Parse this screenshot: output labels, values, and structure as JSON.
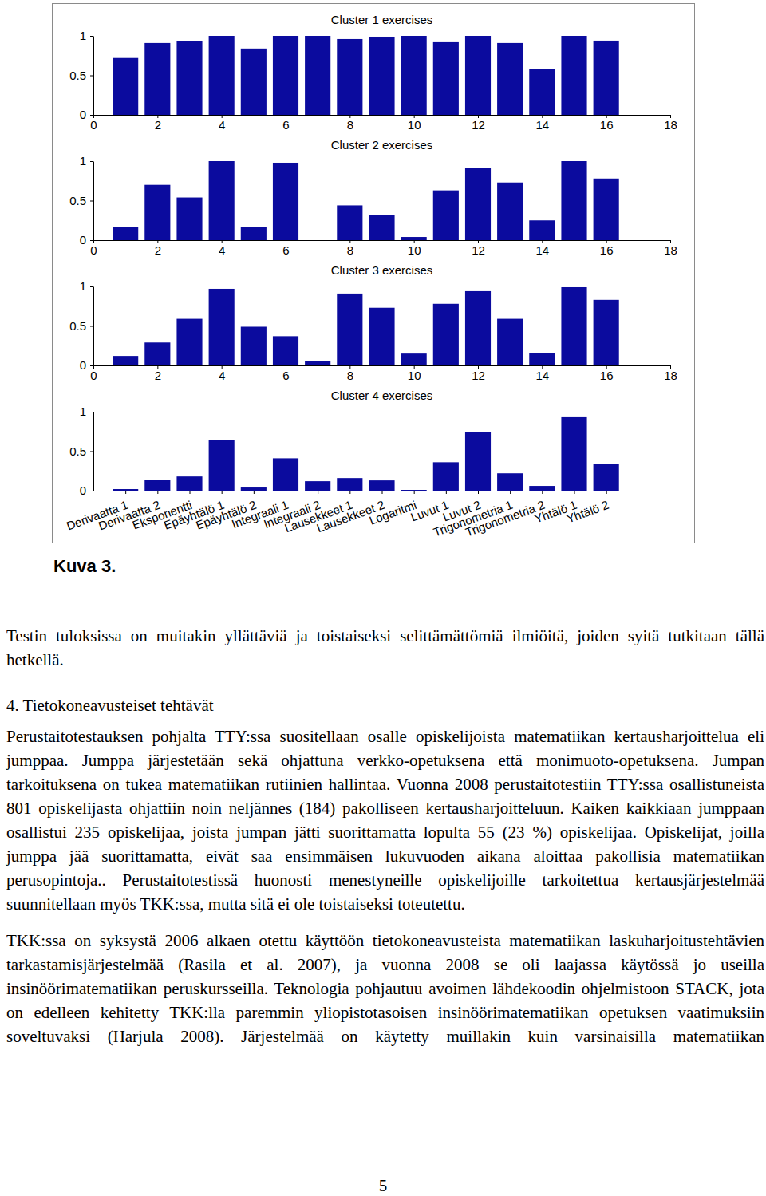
{
  "chart_data": [
    {
      "type": "bar",
      "title": "Cluster 1 exercises",
      "x": [
        1,
        2,
        3,
        4,
        5,
        6,
        7,
        8,
        9,
        10,
        11,
        12,
        13,
        14,
        15,
        16
      ],
      "values": [
        0.72,
        0.91,
        0.93,
        1.0,
        0.84,
        1.0,
        1.0,
        0.96,
        0.99,
        1.0,
        0.92,
        1.0,
        0.91,
        0.58,
        1.0,
        0.94
      ],
      "color": "#0b0b9e",
      "xlim": [
        0,
        18
      ],
      "xticks": [
        0,
        2,
        4,
        6,
        8,
        10,
        12,
        14,
        16,
        18
      ],
      "ylim": [
        0,
        1
      ],
      "yticks": [
        0,
        0.5,
        1
      ]
    },
    {
      "type": "bar",
      "title": "Cluster 2 exercises",
      "x": [
        1,
        2,
        3,
        4,
        5,
        6,
        7,
        8,
        9,
        10,
        11,
        12,
        13,
        14,
        15,
        16
      ],
      "values": [
        0.17,
        0.7,
        0.54,
        1.0,
        0.17,
        0.98,
        0,
        0.44,
        0.32,
        0.04,
        0.63,
        0.91,
        0.73,
        0.25,
        1.0,
        0.78
      ],
      "color": "#0b0b9e",
      "xlim": [
        0,
        18
      ],
      "xticks": [
        0,
        2,
        4,
        6,
        8,
        10,
        12,
        14,
        16,
        18
      ],
      "ylim": [
        0,
        1
      ],
      "yticks": [
        0,
        0.5,
        1
      ]
    },
    {
      "type": "bar",
      "title": "Cluster 3 exercises",
      "x": [
        1,
        2,
        3,
        4,
        5,
        6,
        7,
        8,
        9,
        10,
        11,
        12,
        13,
        14,
        15,
        16
      ],
      "values": [
        0.12,
        0.29,
        0.59,
        0.97,
        0.49,
        0.37,
        0.06,
        0.91,
        0.73,
        0.15,
        0.78,
        0.94,
        0.59,
        0.16,
        0.99,
        0.83
      ],
      "color": "#0b0b9e",
      "xlim": [
        0,
        18
      ],
      "xticks": [
        0,
        2,
        4,
        6,
        8,
        10,
        12,
        14,
        16,
        18
      ],
      "ylim": [
        0,
        1
      ],
      "yticks": [
        0,
        0.5,
        1
      ]
    },
    {
      "type": "bar",
      "title": "Cluster 4 exercises",
      "x": [
        1,
        2,
        3,
        4,
        5,
        6,
        7,
        8,
        9,
        10,
        11,
        12,
        13,
        14,
        15,
        16
      ],
      "categories": [
        "Derivaatta 1",
        "Derivaatta 2",
        "Eksponentti",
        "Epäyhtälö 1",
        "Epäyhtälö 2",
        "Integraali 1",
        "Integraali 2",
        "Lausekkeet 1",
        "Lausekkeet 2",
        "Logaritmi",
        "Luvut 1",
        "Luvut 2",
        "Trigonometria 1",
        "Trigonometria 2",
        "Yhtälö 1",
        "Yhtälö 2"
      ],
      "values": [
        0.02,
        0.14,
        0.18,
        0.64,
        0.04,
        0.41,
        0.12,
        0.16,
        0.13,
        0.01,
        0.36,
        0.74,
        0.22,
        0.06,
        0.93,
        0.34
      ],
      "color": "#0b0b9e",
      "xlim": [
        0,
        18
      ],
      "ylim": [
        0,
        1
      ],
      "yticks": [
        0,
        0.5,
        1
      ]
    }
  ],
  "document": {
    "caption": "Kuva 3.",
    "intro": "Testin tuloksissa on muitakin yllättäviä ja toistaiseksi selittämättömiä ilmiöitä, joiden syitä tutkitaan tällä hetkellä.",
    "section_title": "4. Tietokoneavusteiset tehtävät",
    "section_paragraphs": [
      "Perustaitotestauksen pohjalta TTY:ssa suositellaan osalle opiskelijoista matematiikan kertausharjoittelua eli jumppaa. Jumppa järjestetään sekä ohjattuna verkko-opetuksena että monimuoto-opetuksena. Jumpan tarkoituksena on tukea matematiikan rutiinien hallintaa. Vuonna 2008 perustaitotestiin TTY:ssa osallistuneista 801 opiskelijasta ohjattiin noin neljännes (184) pakolliseen kertausharjoitteluun. Kaiken kaikkiaan jumppaan osallistui 235 opiskelijaa, joista jumpan jätti suorittamatta lopulta 55 (23 %) opiskelijaa. Opiskelijat, joilla jumppa jää suorittamatta, eivät saa ensimmäisen lukuvuoden aikana aloittaa pakollisia matematiikan perusopintoja.. Perustaitotestissä huonosti menestyneille opiskelijoille tarkoitettua kertausjärjestelmää suunnitellaan myös TKK:ssa, mutta sitä ei ole toistaiseksi toteutettu.",
      "TKK:ssa on syksystä 2006 alkaen otettu käyttöön tietokoneavusteista matematiikan laskuharjoitustehtävien tarkastamisjärjestelmää (Rasila et al. 2007), ja vuonna 2008 se oli laajassa käytössä jo useilla insinöörimatematiikan peruskursseilla. Teknologia pohjautuu avoimen lähdekoodin ohjelmistoon STACK, jota on edelleen kehitetty TKK:lla paremmin yliopistotasoisen insinöörimatematiikan opetuksen vaatimuksiin soveltuvaksi (Harjula 2008). Järjestelmää on käytetty muillakin kuin varsinaisilla matematiikan"
    ],
    "page_number": "5"
  }
}
